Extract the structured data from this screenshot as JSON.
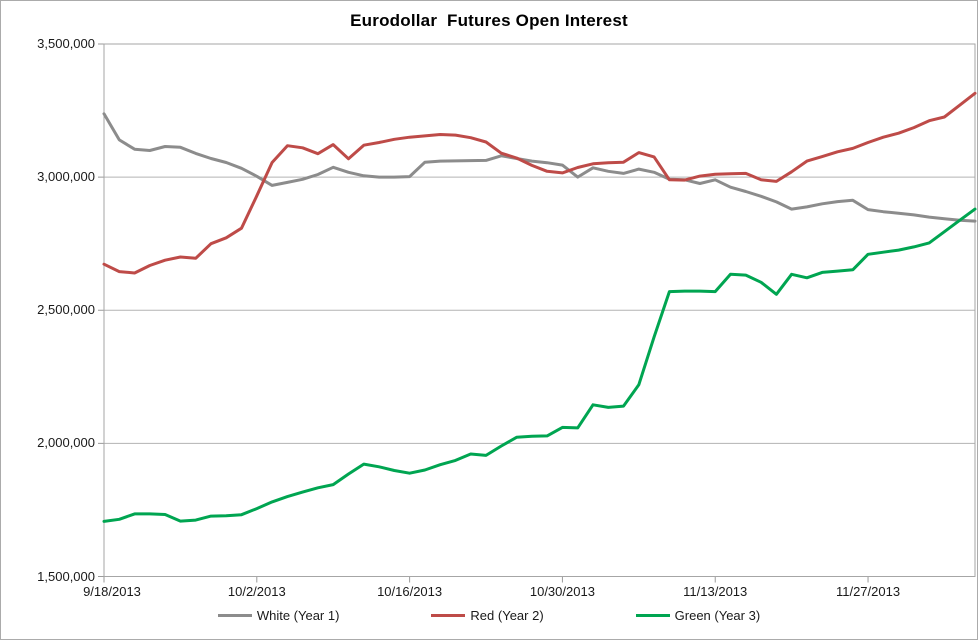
{
  "title": "Eurodollar  Futures Open Interest",
  "chart_data": {
    "type": "line",
    "title": "Eurodollar  Futures Open Interest",
    "xlabel": "",
    "ylabel": "",
    "grid": "horizontal-gridlines",
    "legend_position": "bottom",
    "ylim": [
      1500000,
      3500000
    ],
    "y_ticks": [
      {
        "label": "3,500,000",
        "value": 3500000
      },
      {
        "label": "3,000,000",
        "value": 3000000
      },
      {
        "label": "2,500,000",
        "value": 2500000
      },
      {
        "label": "2,000,000",
        "value": 2000000
      },
      {
        "label": "1,500,000",
        "value": 1500000
      }
    ],
    "x_tick_indices": [
      0,
      10,
      20,
      30,
      40,
      50
    ],
    "x_tick_labels": [
      "9/18/2013",
      "10/2/2013",
      "10/16/2013",
      "10/30/2013",
      "11/13/2013",
      "11/27/2013"
    ],
    "x": [
      "9/18/2013",
      "9/19/2013",
      "9/20/2013",
      "9/23/2013",
      "9/24/2013",
      "9/25/2013",
      "9/26/2013",
      "9/27/2013",
      "9/30/2013",
      "10/1/2013",
      "10/2/2013",
      "10/3/2013",
      "10/4/2013",
      "10/7/2013",
      "10/8/2013",
      "10/9/2013",
      "10/10/2013",
      "10/11/2013",
      "10/14/2013",
      "10/15/2013",
      "10/16/2013",
      "10/17/2013",
      "10/18/2013",
      "10/21/2013",
      "10/22/2013",
      "10/23/2013",
      "10/24/2013",
      "10/25/2013",
      "10/28/2013",
      "10/29/2013",
      "10/30/2013",
      "10/31/2013",
      "11/1/2013",
      "11/4/2013",
      "11/5/2013",
      "11/6/2013",
      "11/7/2013",
      "11/8/2013",
      "11/11/2013",
      "11/12/2013",
      "11/13/2013",
      "11/14/2013",
      "11/15/2013",
      "11/18/2013",
      "11/19/2013",
      "11/20/2013",
      "11/21/2013",
      "11/22/2013",
      "11/25/2013",
      "11/26/2013",
      "11/27/2013",
      "11/29/2013",
      "12/2/2013",
      "12/3/2013",
      "12/4/2013",
      "12/5/2013",
      "12/6/2013",
      "12/9/2013"
    ],
    "series": [
      {
        "name": "White (Year 1)",
        "color": "#8C8C8C",
        "values": [
          3238000,
          3140000,
          3105000,
          3100000,
          3115000,
          3112000,
          3089000,
          3070000,
          3055000,
          3033000,
          3003000,
          2969000,
          2980000,
          2992000,
          3010000,
          3037000,
          3018000,
          3005000,
          3000000,
          3000000,
          3002000,
          3056000,
          3060000,
          3061000,
          3062000,
          3063000,
          3080000,
          3070000,
          3060000,
          3054000,
          3045000,
          3000000,
          3035000,
          3022000,
          3014000,
          3030000,
          3018000,
          2992000,
          2990000,
          2976000,
          2990000,
          2962000,
          2946000,
          2928000,
          2907000,
          2880000,
          2888000,
          2900000,
          2908000,
          2913000,
          2878000,
          2870000,
          2864000,
          2858000,
          2850000,
          2844000,
          2838000,
          2835000
        ]
      },
      {
        "name": "Red (Year 2)",
        "color": "#BE4B48",
        "values": [
          2673000,
          2645000,
          2640000,
          2668000,
          2688000,
          2700000,
          2695000,
          2750000,
          2772000,
          2808000,
          2930000,
          3055000,
          3118000,
          3110000,
          3088000,
          3122000,
          3069000,
          3120000,
          3130000,
          3142000,
          3150000,
          3155000,
          3160000,
          3158000,
          3148000,
          3132000,
          3090000,
          3072000,
          3044000,
          3022000,
          3016000,
          3036000,
          3050000,
          3054000,
          3056000,
          3092000,
          3076000,
          2990000,
          2989000,
          3004000,
          3011000,
          3013000,
          3014000,
          2990000,
          2984000,
          3020000,
          3060000,
          3077000,
          3095000,
          3108000,
          3130000,
          3150000,
          3165000,
          3186000,
          3212000,
          3226000,
          3270000,
          3315000
        ]
      },
      {
        "name": "Green (Year 3)",
        "color": "#00A551",
        "values": [
          1707000,
          1715000,
          1735000,
          1735000,
          1733000,
          1708000,
          1712000,
          1727000,
          1728000,
          1732000,
          1755000,
          1780000,
          1800000,
          1817000,
          1833000,
          1845000,
          1885000,
          1922000,
          1912000,
          1898000,
          1888000,
          1900000,
          1920000,
          1936000,
          1960000,
          1955000,
          1990000,
          2023000,
          2027000,
          2028000,
          2060000,
          2058000,
          2145000,
          2135000,
          2140000,
          2220000,
          2400000,
          2570000,
          2572000,
          2572000,
          2570000,
          2635000,
          2632000,
          2605000,
          2560000,
          2635000,
          2622000,
          2642000,
          2647000,
          2652000,
          2710000,
          2718000,
          2726000,
          2738000,
          2753000,
          2795000,
          2838000,
          2880000
        ]
      }
    ]
  }
}
